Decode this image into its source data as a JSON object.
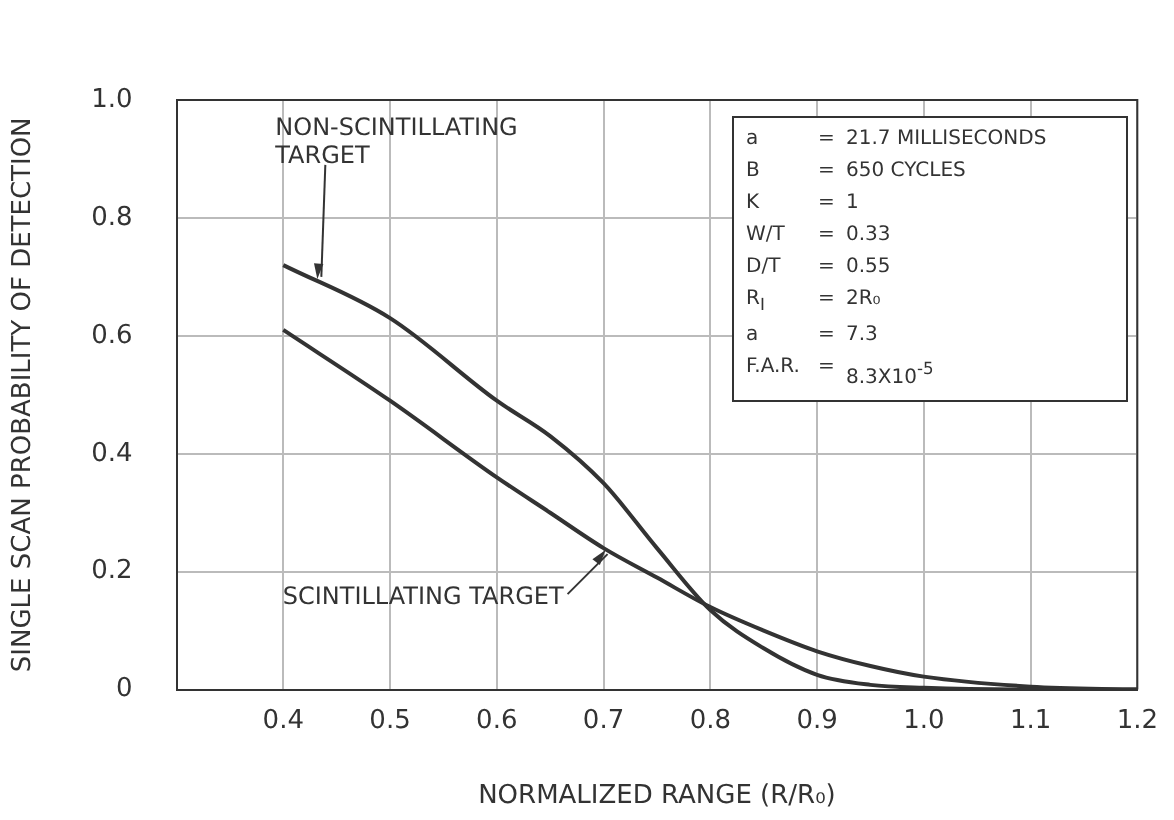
{
  "chart_data": {
    "type": "line",
    "x": [
      0.4,
      0.5,
      0.6,
      0.65,
      0.7,
      0.75,
      0.8,
      0.85,
      0.9,
      0.95,
      1.0,
      1.1,
      1.2
    ],
    "series": [
      {
        "color": "#333333",
        "values": [
          0.72,
          0.63,
          0.49,
          0.43,
          0.35,
          0.24,
          0.135,
          0.07,
          0.025,
          0.008,
          0.003,
          0,
          0
        ]
      },
      {
        "color": "#333333",
        "values": [
          0.61,
          0.49,
          0.36,
          0.3,
          0.24,
          0.19,
          0.14,
          0.1,
          0.065,
          0.04,
          0.022,
          0.005,
          0
        ]
      }
    ],
    "xlabel": "NORMALIZED RANGE (R/R₀)",
    "ylabel": "SINGLE SCAN PROBABILITY OF DETECTION",
    "xlim": [
      0.3,
      1.2
    ],
    "xticks": [
      0.4,
      0.5,
      0.6,
      0.7,
      0.8,
      0.9,
      {
        "value": 1.0,
        "label": "1.0"
      },
      1.1,
      1.2
    ],
    "ylim": [
      0,
      1.0
    ],
    "yticks": [
      0,
      0.2,
      0.4,
      0.6,
      0.8,
      {
        "value": 1.0,
        "label": "1.0"
      }
    ],
    "grid": true,
    "legend": false,
    "marker": "none",
    "line_style": "solid",
    "annotations": [
      {
        "text": "NON-SCINTILLATING TARGET",
        "x": 0.43,
        "y": 0.7
      },
      {
        "text": "SCINTILLATING TARGET",
        "x": 0.7,
        "y": 0.24
      },
      "a = 21.7 MILLISECONDS",
      "B = 650 CYCLES",
      "K = 1",
      "W/T = 0.33",
      "D/T = 0.55",
      "R$_{I}$ = 2R₀",
      "a = 7.3",
      "F.A.R. = 8.3X10$^{-5}$"
    ]
  }
}
